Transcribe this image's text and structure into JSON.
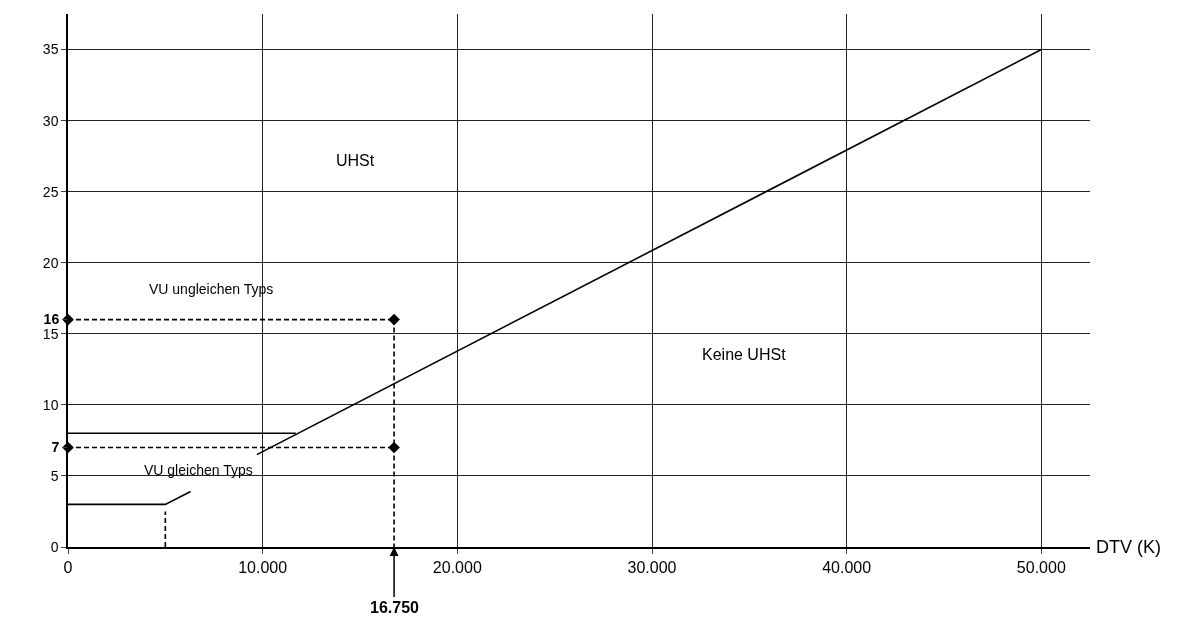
{
  "chart_data": {
    "type": "line",
    "xlabel": "DTV (K)",
    "xlim": [
      0,
      52500
    ],
    "ylim": [
      0,
      37.5
    ],
    "xticks": [
      0,
      {
        "value": 10000,
        "label": "10.000"
      },
      {
        "value": 20000,
        "label": "20.000"
      },
      {
        "value": 30000,
        "label": "30.000"
      },
      {
        "value": 40000,
        "label": "40.000"
      },
      {
        "value": 50000,
        "label": "50.000"
      }
    ],
    "yticks": [
      0,
      5,
      {
        "value": 7,
        "label": "7"
      },
      10,
      15,
      {
        "value": 16,
        "label": "16"
      },
      20,
      25,
      30,
      35
    ],
    "grid": true,
    "series": [
      {
        "color": "#000000",
        "x": [
          9700,
          50000
        ],
        "values": [
          6.5,
          35
        ],
        "line_style": "solid",
        "marker": "none"
      },
      {
        "color": "#000000",
        "x": [
          0,
          11700
        ],
        "values": [
          8,
          8
        ],
        "line_style": "solid",
        "marker": "none"
      },
      {
        "color": "#000000",
        "x": [
          0,
          5000,
          6300
        ],
        "values": [
          3,
          3,
          3.9
        ],
        "line_style": "solid",
        "marker": "none"
      },
      {
        "color": "#000000",
        "x": [
          5000,
          5000
        ],
        "values": [
          0,
          2.5
        ],
        "line_style": "dashed",
        "marker": "none"
      },
      {
        "color": "#000000",
        "x": [
          0,
          16750
        ],
        "values": [
          16,
          16
        ],
        "line_style": "dashed",
        "marker": "diamond"
      },
      {
        "color": "#000000",
        "x": [
          0,
          16750
        ],
        "values": [
          7,
          7
        ],
        "line_style": "dashed",
        "marker": "diamond"
      },
      {
        "color": "#000000",
        "x": [
          16750,
          16750
        ],
        "values": [
          16,
          0
        ],
        "line_style": "dashed",
        "marker": "none"
      }
    ],
    "annotations": [
      "UHSt",
      "Keine UHSt",
      "VU ungleichen Typs",
      "VU gleichen Typs",
      {
        "text": "16.750",
        "x": 16750,
        "y": 0
      }
    ]
  }
}
